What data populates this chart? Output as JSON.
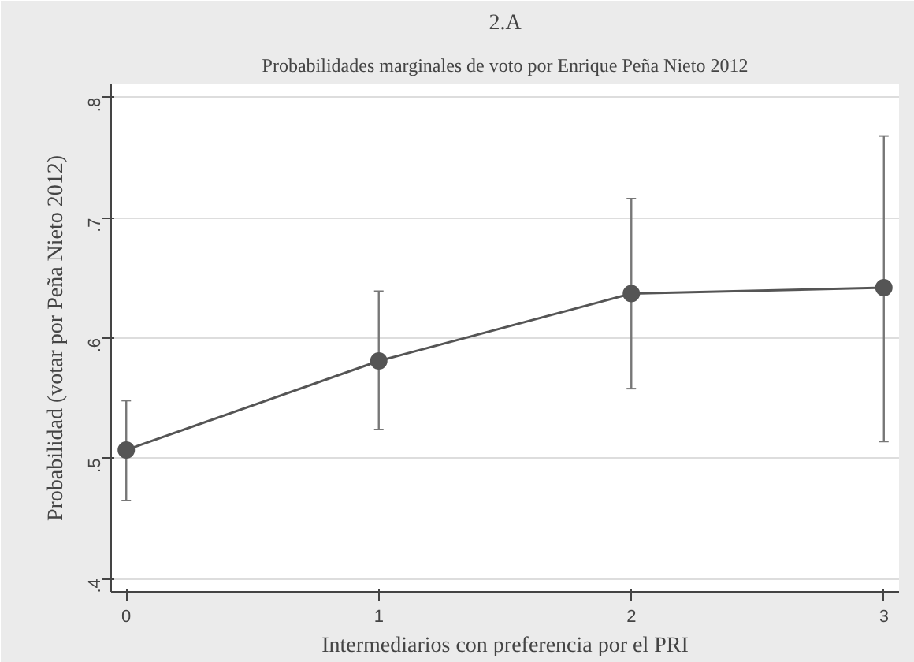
{
  "chart_data": {
    "type": "line",
    "title": "2.A",
    "subtitle": "Probabilidades marginales de voto por Enrique Peña Nieto 2012",
    "xlabel": "Intermediarios con preferencia por el PRI",
    "ylabel": "Probabilidad (votar por Peña Nieto 2012)",
    "x": [
      0,
      1,
      2,
      3
    ],
    "series": [
      {
        "color": "#555555",
        "values": [
          0.507,
          0.581,
          0.637,
          0.642
        ],
        "errors": [
          [
            0.465,
            0.548
          ],
          [
            0.524,
            0.639
          ],
          [
            0.558,
            0.716
          ],
          [
            0.514,
            0.768
          ]
        ]
      }
    ],
    "xlim": [
      -0.06,
      3.06
    ],
    "xticks": [
      0,
      1,
      2,
      3
    ],
    "ylim": [
      0.389,
      0.811
    ],
    "yticks": [
      {
        "value": 0.4,
        "label": ".4"
      },
      {
        "value": 0.5,
        "label": ".5"
      },
      {
        "value": 0.6,
        "label": ".6"
      },
      {
        "value": 0.7,
        "label": ".7"
      },
      {
        "value": 0.8,
        "label": ".8"
      }
    ],
    "grid": "y",
    "marker": "circle",
    "line_style": "solid"
  }
}
